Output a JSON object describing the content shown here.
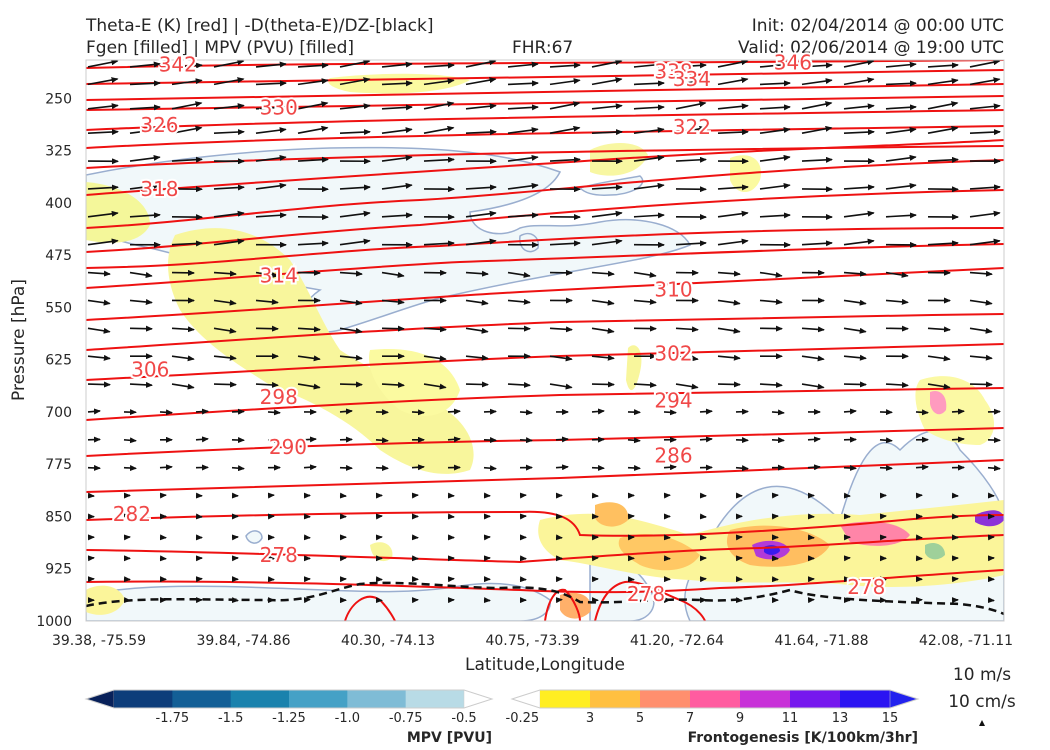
{
  "header": {
    "title_left_1": "Theta-E (K) [red] | -D(theta-E)/DZ-[black]",
    "title_left_2": "Fgen [filled] | MPV (PVU) [filled]",
    "fhr": "FHR:67",
    "init": "Init: 02/04/2014 @ 00:00 UTC",
    "valid": "Valid: 02/06/2014 @ 19:00 UTC"
  },
  "chart_data": {
    "type": "cross-section",
    "xlabel": "Latitude,Longitude",
    "ylabel": "Pressure [hPa]",
    "x_ticks": [
      "39.38, -75.59",
      "39.84, -74.86",
      "40.30, -74.13",
      "40.75, -73.39",
      "41.20, -72.64",
      "41.64, -71.88",
      "42.08, -71.11"
    ],
    "y_ticks": [
      250,
      325,
      400,
      475,
      550,
      625,
      700,
      775,
      850,
      925,
      1000
    ],
    "ylim": [
      1000,
      195
    ],
    "y_inverted": true,
    "theta_e_contours": {
      "color": "#ee1111",
      "labels": [
        {
          "value": "342",
          "x_frac": 0.1,
          "p": 200
        },
        {
          "value": "338",
          "x_frac": 0.64,
          "p": 210
        },
        {
          "value": "334",
          "x_frac": 0.66,
          "p": 221
        },
        {
          "value": "346",
          "x_frac": 0.77,
          "p": 197
        },
        {
          "value": "330",
          "x_frac": 0.21,
          "p": 262
        },
        {
          "value": "326",
          "x_frac": 0.08,
          "p": 287
        },
        {
          "value": "322",
          "x_frac": 0.66,
          "p": 290
        },
        {
          "value": "318",
          "x_frac": 0.08,
          "p": 379
        },
        {
          "value": "314",
          "x_frac": 0.21,
          "p": 503
        },
        {
          "value": "310",
          "x_frac": 0.64,
          "p": 523
        },
        {
          "value": "306",
          "x_frac": 0.07,
          "p": 638
        },
        {
          "value": "302",
          "x_frac": 0.64,
          "p": 615
        },
        {
          "value": "298",
          "x_frac": 0.21,
          "p": 677
        },
        {
          "value": "294",
          "x_frac": 0.64,
          "p": 682
        },
        {
          "value": "290",
          "x_frac": 0.22,
          "p": 749
        },
        {
          "value": "286",
          "x_frac": 0.64,
          "p": 761
        },
        {
          "value": "282",
          "x_frac": 0.05,
          "p": 845
        },
        {
          "value": "278",
          "x_frac": 0.21,
          "p": 904
        },
        {
          "value": "278",
          "x_frac": 0.61,
          "p": 960
        },
        {
          "value": "278",
          "x_frac": 0.85,
          "p": 950
        }
      ]
    },
    "wind_reference": [
      "10 m/s",
      "10 cm/s"
    ],
    "mpv_colorbar": {
      "label": "MPV [PVU]",
      "ticks": [
        "-1.75",
        "-1.5",
        "-1.25",
        "-1.0",
        "-0.75",
        "-0.5",
        "-0.25"
      ],
      "colors": [
        "#08215a",
        "#0d3d7a",
        "#135f96",
        "#1a82ad",
        "#45a1c6",
        "#7fbcd6",
        "#b8dbe6",
        "#ffffff"
      ]
    },
    "fgen_colorbar": {
      "label": "Frontogenesis [K/100km/3hr]",
      "ticks": [
        "3",
        "5",
        "7",
        "9",
        "11",
        "13",
        "15"
      ],
      "colors": [
        "#ffffff",
        "#ffee22",
        "#ffc040",
        "#ff8f6e",
        "#ff5ca0",
        "#c832d8",
        "#7618ee",
        "#2b14f2",
        "#2222ee"
      ]
    }
  }
}
